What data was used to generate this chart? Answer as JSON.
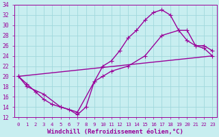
{
  "xlabel": "Windchill (Refroidissement éolien,°C)",
  "bg_color": "#c8eef0",
  "grid_color": "#a0d8dc",
  "line_color": "#990099",
  "xlim": [
    -0.5,
    23.5
  ],
  "ylim": [
    12,
    34
  ],
  "xticks": [
    0,
    1,
    2,
    3,
    4,
    5,
    6,
    7,
    8,
    9,
    10,
    11,
    12,
    13,
    14,
    15,
    16,
    17,
    18,
    19,
    20,
    21,
    22,
    23
  ],
  "yticks": [
    12,
    14,
    16,
    18,
    20,
    22,
    24,
    26,
    28,
    30,
    32,
    34
  ],
  "line1_x": [
    0,
    1,
    2,
    3,
    4,
    5,
    6,
    7,
    8,
    9,
    10,
    11,
    12,
    13,
    14,
    15,
    16,
    17,
    18,
    19,
    20,
    21,
    22,
    23
  ],
  "line1_y": [
    20,
    18.5,
    17,
    15.5,
    14.5,
    14,
    13.5,
    12.5,
    14,
    19,
    22,
    23,
    25,
    27.5,
    29,
    31,
    32.5,
    33,
    32,
    29,
    27,
    26,
    25.5,
    24
  ],
  "line2_x": [
    0,
    1,
    3,
    5,
    7,
    9,
    10,
    11,
    13,
    15,
    17,
    19,
    20,
    21,
    22,
    23
  ],
  "line2_y": [
    20,
    18,
    16.5,
    14,
    13,
    19,
    20,
    21,
    22,
    24,
    28,
    29,
    29,
    26,
    26,
    25
  ],
  "line3_x": [
    0,
    23
  ],
  "line3_y": [
    20,
    24
  ],
  "marker_size": 3,
  "linewidth": 1.0,
  "xlabel_fontsize": 6.5,
  "tick_fontsize": 6
}
